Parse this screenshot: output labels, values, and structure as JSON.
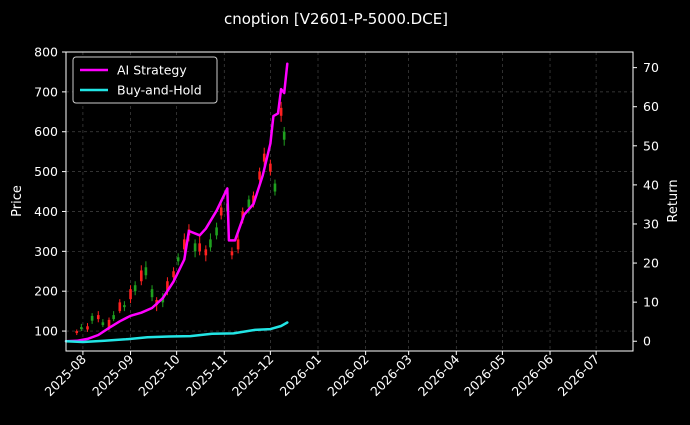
{
  "chart_data": {
    "type": "line",
    "title": "cnoption [V2601-P-5000.DCE]",
    "ylabel_left": "Price",
    "ylabel_right": "Return",
    "x_ticks": [
      "2025-08",
      "2025-09",
      "2025-10",
      "2025-11",
      "2025-12",
      "2026-01",
      "2026-02",
      "2026-03",
      "2026-04",
      "2026-05",
      "2026-06",
      "2026-07"
    ],
    "xlim": [
      "2025-07-21",
      "2026-07-25"
    ],
    "ylim_left": [
      50,
      800
    ],
    "yticks_left": [
      100,
      200,
      300,
      400,
      500,
      600,
      700,
      800
    ],
    "ylim_right": [
      -2.5,
      74
    ],
    "yticks_right": [
      0,
      10,
      20,
      30,
      40,
      50,
      60,
      70
    ],
    "grid": true,
    "legend_position": "top-left",
    "colors": {
      "background": "#000000",
      "ai_strategy": "#ff00ff",
      "buy_and_hold": "#22e5e5",
      "candle_up": "#ff2020",
      "candle_down": "#1fa01f",
      "grid": "#444444",
      "text": "#ffffff"
    },
    "series": [
      {
        "name": "AI Strategy",
        "axis": "right",
        "points": [
          [
            "2025-07-21",
            0.0
          ],
          [
            "2025-07-28",
            0.1
          ],
          [
            "2025-08-04",
            0.6
          ],
          [
            "2025-08-11",
            1.6
          ],
          [
            "2025-08-18",
            3.4
          ],
          [
            "2025-08-25",
            5.1
          ],
          [
            "2025-09-01",
            6.5
          ],
          [
            "2025-09-08",
            7.3
          ],
          [
            "2025-09-15",
            8.5
          ],
          [
            "2025-09-22",
            11.0
          ],
          [
            "2025-09-29",
            15.3
          ],
          [
            "2025-10-06",
            20.9
          ],
          [
            "2025-10-09",
            28.2
          ],
          [
            "2025-10-16",
            27.1
          ],
          [
            "2025-10-20",
            28.8
          ],
          [
            "2025-10-27",
            33.4
          ],
          [
            "2025-11-03",
            39.1
          ],
          [
            "2025-11-04",
            25.8
          ],
          [
            "2025-11-08",
            25.8
          ],
          [
            "2025-11-14",
            32.4
          ],
          [
            "2025-11-20",
            35.1
          ],
          [
            "2025-11-26",
            42.4
          ],
          [
            "2025-12-01",
            50.6
          ],
          [
            "2025-12-03",
            57.6
          ],
          [
            "2025-12-06",
            58.3
          ],
          [
            "2025-12-08",
            64.5
          ],
          [
            "2025-12-10",
            63.5
          ],
          [
            "2025-12-12",
            71.0
          ]
        ]
      },
      {
        "name": "Buy-and-Hold",
        "axis": "right",
        "points": [
          [
            "2025-07-21",
            0.0
          ],
          [
            "2025-08-01",
            -0.2
          ],
          [
            "2025-08-15",
            0.1
          ],
          [
            "2025-08-29",
            0.5
          ],
          [
            "2025-09-12",
            1.0
          ],
          [
            "2025-09-26",
            1.2
          ],
          [
            "2025-10-10",
            1.3
          ],
          [
            "2025-10-24",
            1.9
          ],
          [
            "2025-11-07",
            2.0
          ],
          [
            "2025-11-21",
            2.9
          ],
          [
            "2025-12-01",
            3.1
          ],
          [
            "2025-12-08",
            3.9
          ],
          [
            "2025-12-12",
            4.8
          ]
        ]
      }
    ],
    "candles": [
      {
        "date": "2025-07-28",
        "open": 95,
        "close": 100,
        "high": 104,
        "low": 90
      },
      {
        "date": "2025-07-31",
        "open": 110,
        "close": 105,
        "high": 118,
        "low": 100
      },
      {
        "date": "2025-08-04",
        "open": 104,
        "close": 112,
        "high": 120,
        "low": 98
      },
      {
        "date": "2025-08-07",
        "open": 138,
        "close": 126,
        "high": 145,
        "low": 118
      },
      {
        "date": "2025-08-11",
        "open": 130,
        "close": 140,
        "high": 150,
        "low": 122
      },
      {
        "date": "2025-08-14",
        "open": 122,
        "close": 115,
        "high": 130,
        "low": 110
      },
      {
        "date": "2025-08-18",
        "open": 108,
        "close": 128,
        "high": 134,
        "low": 102
      },
      {
        "date": "2025-08-21",
        "open": 140,
        "close": 130,
        "high": 150,
        "low": 125
      },
      {
        "date": "2025-08-25",
        "open": 150,
        "close": 172,
        "high": 180,
        "low": 145
      },
      {
        "date": "2025-08-28",
        "open": 165,
        "close": 160,
        "high": 175,
        "low": 150
      },
      {
        "date": "2025-09-01",
        "open": 180,
        "close": 205,
        "high": 215,
        "low": 170
      },
      {
        "date": "2025-09-04",
        "open": 215,
        "close": 200,
        "high": 225,
        "low": 190
      },
      {
        "date": "2025-09-08",
        "open": 225,
        "close": 252,
        "high": 265,
        "low": 215
      },
      {
        "date": "2025-09-11",
        "open": 260,
        "close": 240,
        "high": 275,
        "low": 230
      },
      {
        "date": "2025-09-15",
        "open": 205,
        "close": 185,
        "high": 215,
        "low": 175
      },
      {
        "date": "2025-09-18",
        "open": 165,
        "close": 178,
        "high": 185,
        "low": 150
      },
      {
        "date": "2025-09-22",
        "open": 185,
        "close": 172,
        "high": 195,
        "low": 160
      },
      {
        "date": "2025-09-25",
        "open": 200,
        "close": 225,
        "high": 235,
        "low": 190
      },
      {
        "date": "2025-09-29",
        "open": 235,
        "close": 250,
        "high": 260,
        "low": 220
      },
      {
        "date": "2025-10-02",
        "open": 285,
        "close": 275,
        "high": 295,
        "low": 265
      },
      {
        "date": "2025-10-06",
        "open": 305,
        "close": 330,
        "high": 345,
        "low": 295
      },
      {
        "date": "2025-10-09",
        "open": 340,
        "close": 355,
        "high": 368,
        "low": 325
      },
      {
        "date": "2025-10-13",
        "open": 320,
        "close": 300,
        "high": 330,
        "low": 285
      },
      {
        "date": "2025-10-16",
        "open": 300,
        "close": 320,
        "high": 340,
        "low": 290
      },
      {
        "date": "2025-10-20",
        "open": 290,
        "close": 305,
        "high": 315,
        "low": 275
      },
      {
        "date": "2025-10-23",
        "open": 330,
        "close": 310,
        "high": 345,
        "low": 300
      },
      {
        "date": "2025-10-27",
        "open": 360,
        "close": 340,
        "high": 372,
        "low": 330
      },
      {
        "date": "2025-10-30",
        "open": 390,
        "close": 410,
        "high": 420,
        "low": 380
      },
      {
        "date": "2025-11-03",
        "open": 420,
        "close": 400,
        "high": 430,
        "low": 390
      },
      {
        "date": "2025-11-06",
        "open": 290,
        "close": 300,
        "high": 310,
        "low": 280
      },
      {
        "date": "2025-11-10",
        "open": 305,
        "close": 330,
        "high": 345,
        "low": 295
      },
      {
        "date": "2025-11-13",
        "open": 380,
        "close": 400,
        "high": 410,
        "low": 370
      },
      {
        "date": "2025-11-17",
        "open": 430,
        "close": 410,
        "high": 440,
        "low": 395
      },
      {
        "date": "2025-11-20",
        "open": 420,
        "close": 440,
        "high": 450,
        "low": 410
      },
      {
        "date": "2025-11-24",
        "open": 480,
        "close": 500,
        "high": 510,
        "low": 470
      },
      {
        "date": "2025-11-27",
        "open": 525,
        "close": 545,
        "high": 560,
        "low": 515
      },
      {
        "date": "2025-12-01",
        "open": 500,
        "close": 520,
        "high": 530,
        "low": 490
      },
      {
        "date": "2025-12-04",
        "open": 470,
        "close": 450,
        "high": 480,
        "low": 440
      },
      {
        "date": "2025-12-08",
        "open": 640,
        "close": 660,
        "high": 675,
        "low": 625
      },
      {
        "date": "2025-12-10",
        "open": 600,
        "close": 580,
        "high": 612,
        "low": 565
      }
    ]
  }
}
